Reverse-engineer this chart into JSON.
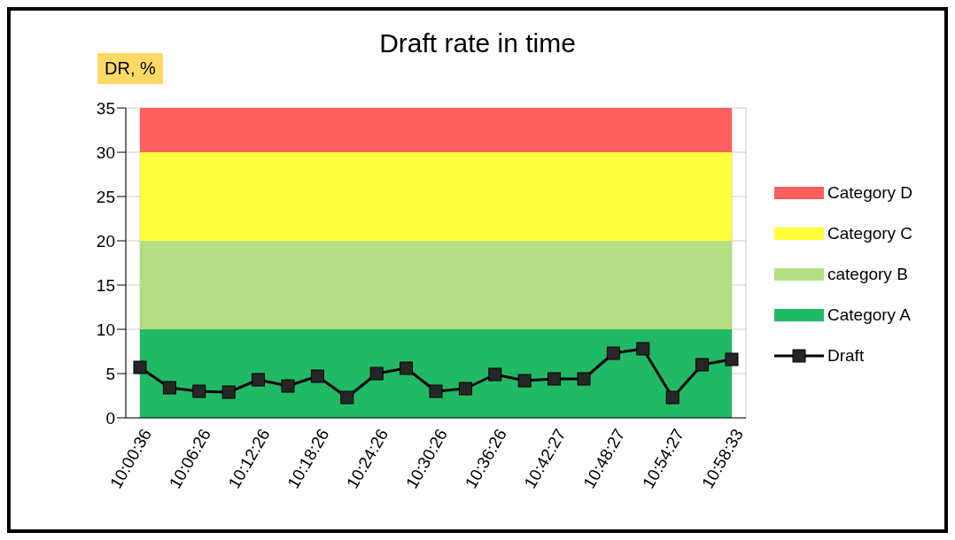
{
  "chart_data": {
    "type": "area",
    "title": "Draft rate in time",
    "ylabel": "DR, %",
    "categories": [
      "10:00:36",
      null,
      "10:06:26",
      null,
      "10:12:26",
      null,
      "10:18:26",
      null,
      "10:24:26",
      null,
      "10:30:26",
      null,
      "10:36:26",
      null,
      "10:42:27",
      null,
      "10:48:27",
      null,
      "10:54:27",
      null,
      "10:58:33"
    ],
    "stacked": true,
    "series": [
      {
        "name": "Category A",
        "color": "#22b966",
        "values": [
          10,
          10,
          10,
          10,
          10,
          10,
          10,
          10,
          10,
          10,
          10,
          10,
          10,
          10,
          10,
          10,
          10,
          10,
          10,
          10,
          10
        ]
      },
      {
        "name": "category B",
        "color": "#b5de84",
        "values": [
          10,
          10,
          10,
          10,
          10,
          10,
          10,
          10,
          10,
          10,
          10,
          10,
          10,
          10,
          10,
          10,
          10,
          10,
          10,
          10,
          10
        ]
      },
      {
        "name": "Category C",
        "color": "#ffff3b",
        "values": [
          10,
          10,
          10,
          10,
          10,
          10,
          10,
          10,
          10,
          10,
          10,
          10,
          10,
          10,
          10,
          10,
          10,
          10,
          10,
          10,
          10
        ]
      },
      {
        "name": "Category D",
        "color": "#ff605c",
        "values": [
          5,
          5,
          5,
          5,
          5,
          5,
          5,
          5,
          5,
          5,
          5,
          5,
          5,
          5,
          5,
          5,
          5,
          5,
          5,
          5,
          5
        ]
      },
      {
        "name": "Draft",
        "type": "line",
        "marker": "square",
        "color": "#000000",
        "values": [
          5.7,
          3.4,
          3.0,
          2.9,
          4.3,
          3.6,
          4.7,
          2.3,
          5.0,
          5.6,
          3.0,
          3.3,
          4.9,
          4.2,
          4.4,
          4.4,
          7.3,
          7.8,
          2.3,
          6.0,
          6.6
        ]
      }
    ],
    "ylim": [
      0,
      35
    ],
    "yticks": [
      0,
      5,
      10,
      15,
      20,
      25,
      30,
      35
    ],
    "grid": true,
    "legend": "right",
    "line_style": "solid"
  }
}
